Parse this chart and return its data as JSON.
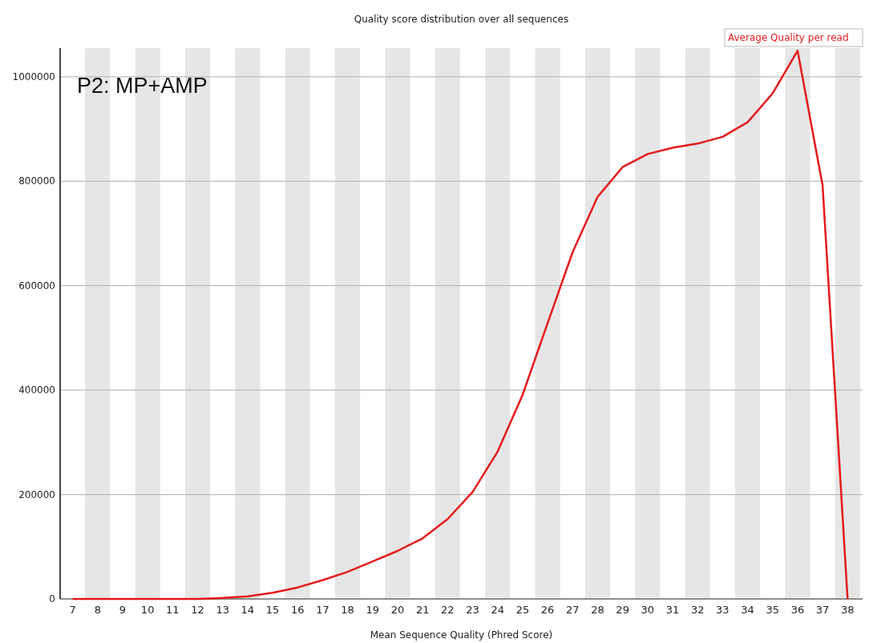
{
  "chart_data": {
    "type": "line",
    "title": "Quality score distribution over all sequences",
    "xlabel": "Mean Sequence Quality (Phred Score)",
    "x": [
      7,
      8,
      9,
      10,
      11,
      12,
      13,
      14,
      15,
      16,
      17,
      18,
      19,
      20,
      21,
      22,
      23,
      24,
      25,
      26,
      27,
      28,
      29,
      30,
      31,
      32,
      33,
      34,
      35,
      36,
      37,
      38
    ],
    "series": [
      {
        "name": "Average Quality per read",
        "color": "#e41a1c",
        "values": [
          0,
          0,
          0,
          0,
          0,
          0,
          2000,
          5000,
          12000,
          22000,
          36000,
          52000,
          72000,
          92000,
          116000,
          153000,
          205000,
          282000,
          391000,
          528000,
          664000,
          770000,
          827000,
          852000,
          864000,
          872000,
          885000,
          913000,
          968000,
          1050000,
          792000,
          0
        ]
      }
    ],
    "xlim": [
      6.5,
      38.6
    ],
    "xticks": [
      7,
      8,
      9,
      10,
      11,
      12,
      13,
      14,
      15,
      16,
      17,
      18,
      19,
      20,
      21,
      22,
      23,
      24,
      25,
      26,
      27,
      28,
      29,
      30,
      31,
      32,
      33,
      34,
      35,
      36,
      37,
      38
    ],
    "ylim": [
      0,
      1055000
    ],
    "yticks": [
      0,
      200000,
      400000,
      600000,
      800000,
      1000000
    ],
    "grid": "y",
    "legend": "top right",
    "marker": "none",
    "line_style": "solid",
    "annotations": [
      "P2: MP+AMP"
    ],
    "bands": [
      {
        "axis": "x",
        "from": 7.5,
        "to": 8.5,
        "color": "#e6e6e6"
      },
      {
        "axis": "x",
        "from": 9.5,
        "to": 10.5,
        "color": "#e6e6e6"
      },
      {
        "axis": "x",
        "from": 11.5,
        "to": 12.5,
        "color": "#e6e6e6"
      },
      {
        "axis": "x",
        "from": 13.5,
        "to": 14.5,
        "color": "#e6e6e6"
      },
      {
        "axis": "x",
        "from": 15.5,
        "to": 16.5,
        "color": "#e6e6e6"
      },
      {
        "axis": "x",
        "from": 17.5,
        "to": 18.5,
        "color": "#e6e6e6"
      },
      {
        "axis": "x",
        "from": 19.5,
        "to": 20.5,
        "color": "#e6e6e6"
      },
      {
        "axis": "x",
        "from": 21.5,
        "to": 22.5,
        "color": "#e6e6e6"
      },
      {
        "axis": "x",
        "from": 23.5,
        "to": 24.5,
        "color": "#e6e6e6"
      },
      {
        "axis": "x",
        "from": 25.5,
        "to": 26.5,
        "color": "#e6e6e6"
      },
      {
        "axis": "x",
        "from": 27.5,
        "to": 28.5,
        "color": "#e6e6e6"
      },
      {
        "axis": "x",
        "from": 29.5,
        "to": 30.5,
        "color": "#e6e6e6"
      },
      {
        "axis": "x",
        "from": 31.5,
        "to": 32.5,
        "color": "#e6e6e6"
      },
      {
        "axis": "x",
        "from": 33.5,
        "to": 34.5,
        "color": "#e6e6e6"
      },
      {
        "axis": "x",
        "from": 35.5,
        "to": 36.5,
        "color": "#e6e6e6"
      },
      {
        "axis": "x",
        "from": 37.5,
        "to": 38.5,
        "color": "#e6e6e6"
      }
    ]
  }
}
